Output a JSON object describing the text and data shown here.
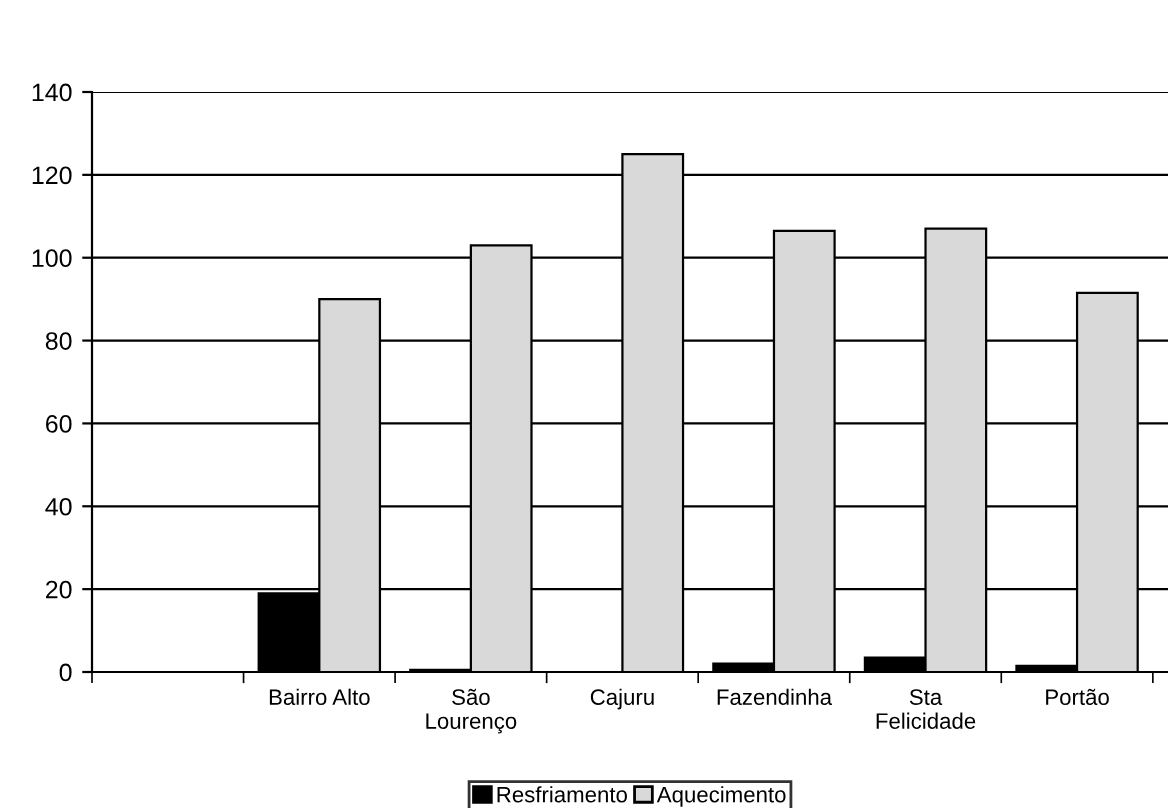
{
  "chart_data": {
    "type": "bar",
    "categories": [
      null,
      "Bairro Alto",
      "São\nLourenço",
      "Cajuru",
      "Fazendinha",
      "Sta\nFelicidade",
      "Portão"
    ],
    "series": [
      {
        "name": "Resfriamento",
        "color": "#000000",
        "values": [
          null,
          19,
          0.5,
          null,
          2,
          3.5,
          1.5
        ]
      },
      {
        "name": "Aquecimento",
        "color": "#d9d9d9",
        "values": [
          null,
          90,
          103,
          125,
          106.5,
          107,
          91.5
        ]
      }
    ],
    "ylim": [
      0,
      140
    ],
    "yticks": [
      0,
      20,
      40,
      60,
      80,
      100,
      120,
      140
    ],
    "grid": "y",
    "legend": "bottom"
  }
}
